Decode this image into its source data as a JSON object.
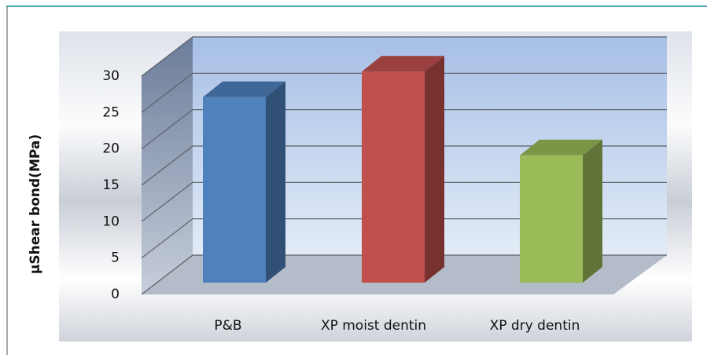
{
  "chart_data": {
    "type": "bar3d",
    "y_label": "µShear bond(MPa)",
    "categories": [
      "P&B",
      "XP moist dentin",
      "XP dry dentin"
    ],
    "values": [
      25.5,
      29,
      17.5
    ],
    "colors": [
      "#4f81bd",
      "#c0504d",
      "#9bbb59"
    ],
    "ylim": [
      0,
      30
    ],
    "yticks": [
      0,
      5,
      10,
      15,
      20,
      25,
      30
    ],
    "grid": true
  }
}
